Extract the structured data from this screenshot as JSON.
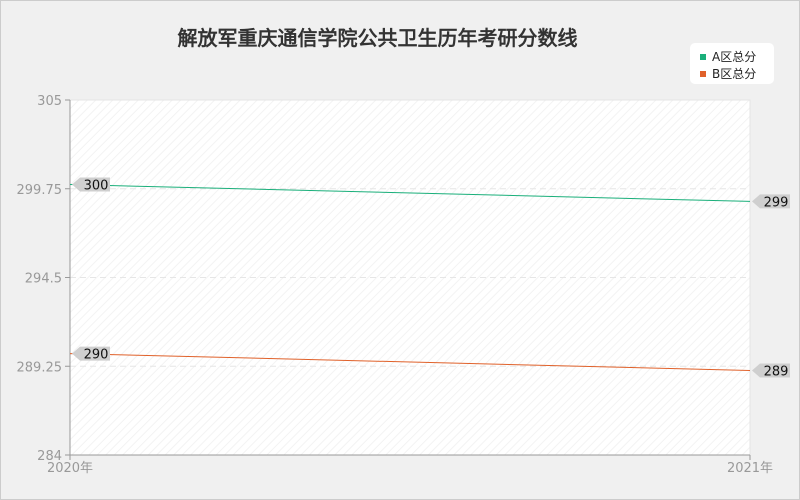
{
  "chart_data": {
    "type": "line",
    "title": "解放军重庆通信学院公共卫生历年考研分数线",
    "categories": [
      "2020年",
      "2021年"
    ],
    "series": [
      {
        "name": "A区总分",
        "values": [
          300,
          299
        ],
        "color": "#1aaf7a"
      },
      {
        "name": "B区总分",
        "values": [
          290,
          289
        ],
        "color": "#e0612a"
      }
    ],
    "yticks": [
      "284",
      "289.25",
      "294.5",
      "299.75",
      "305"
    ],
    "ylim": [
      284,
      305
    ],
    "grid": "horizontal dashed",
    "legend": "top-right"
  }
}
